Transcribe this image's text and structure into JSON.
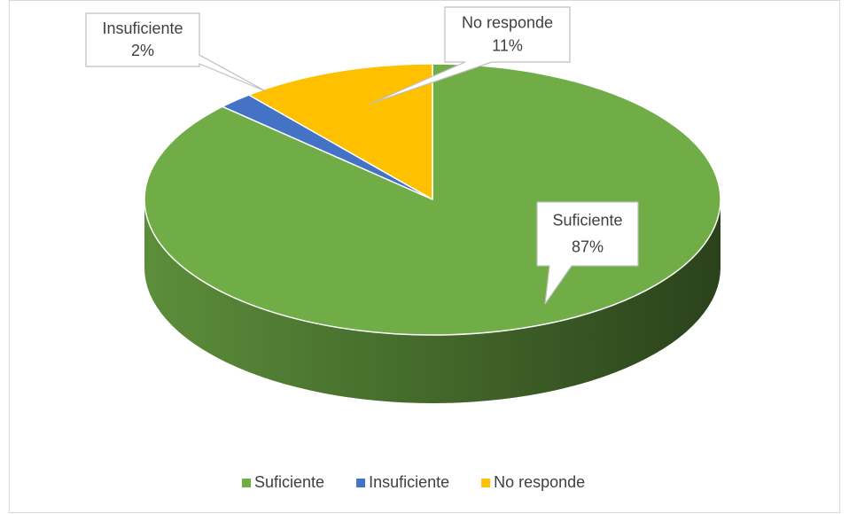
{
  "chart_data": {
    "type": "pie",
    "three_d": true,
    "categories": [
      "Suficiente",
      "Insuficiente",
      "No responde"
    ],
    "values": [
      87,
      2,
      11
    ],
    "value_labels": [
      "87%",
      "2%",
      "11%"
    ],
    "colors": [
      "#70ad47",
      "#4472c4",
      "#ffc000"
    ],
    "legend": "bottom"
  }
}
